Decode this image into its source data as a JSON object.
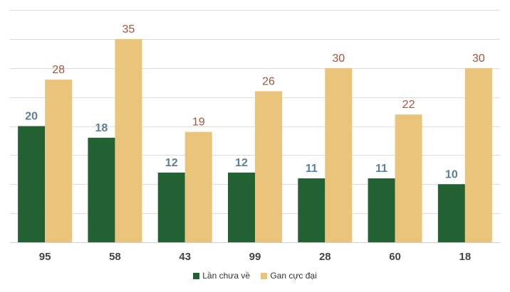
{
  "chart_data": {
    "type": "bar",
    "title": "",
    "xlabel": "",
    "ylabel": "",
    "categories": [
      "95",
      "58",
      "43",
      "99",
      "28",
      "60",
      "18"
    ],
    "series": [
      {
        "name": "Lần chưa về",
        "values": [
          20,
          18,
          12,
          12,
          11,
          11,
          10
        ],
        "color": "#226131",
        "label_color": "#5b7f96"
      },
      {
        "name": "Gan cực đại",
        "values": [
          28,
          35,
          19,
          26,
          30,
          22,
          30
        ],
        "color": "#e9c47a",
        "label_color": "#a0563f"
      }
    ],
    "ylim": [
      0,
      40
    ],
    "gridlines": true,
    "y_tick_labels_visible": false,
    "legend_position": "bottom-center"
  }
}
